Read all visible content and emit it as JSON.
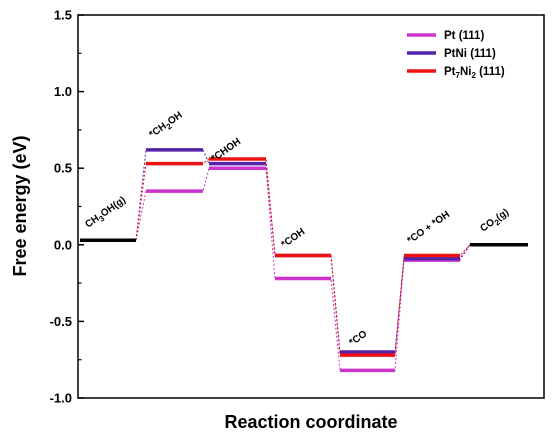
{
  "chart_data": {
    "type": "line",
    "title": "",
    "xlabel": "Reaction coordinate",
    "ylabel": "Free energy (eV)",
    "ylim": [
      -1.0,
      1.5
    ],
    "yticks": [
      "1.5",
      "1.0",
      "0.5",
      "0.0",
      "-0.5",
      "-1.0"
    ],
    "states": [
      {
        "label": "CH3OH(g)",
        "display": [
          "CH",
          "3",
          "OH(g)"
        ]
      },
      {
        "label": "*CH2OH",
        "display": [
          "*CH",
          "2",
          "OH"
        ]
      },
      {
        "label": "*CHOH",
        "display": [
          "*CHOH"
        ]
      },
      {
        "label": "*COH",
        "display": [
          "*COH"
        ]
      },
      {
        "label": "*CO",
        "display": [
          "*CO"
        ]
      },
      {
        "label": "*CO + *OH",
        "display": [
          "*CO + *OH"
        ]
      },
      {
        "label": "CO2(g)",
        "display": [
          "CO",
          "2",
          "(g)"
        ]
      }
    ],
    "series": [
      {
        "name": "Pt (111)",
        "legend": [
          "Pt (111)"
        ],
        "color": "#cc33cc",
        "values": [
          0.03,
          0.35,
          0.5,
          -0.22,
          -0.82,
          -0.1,
          0.0
        ]
      },
      {
        "name": "PtNi (111)",
        "legend": [
          "PtNi (111)"
        ],
        "color": "#5522aa",
        "values": [
          0.03,
          0.62,
          0.53,
          -0.07,
          -0.7,
          -0.09,
          0.0
        ]
      },
      {
        "name": "Pt7Ni2 (111)",
        "legend": [
          "Pt",
          "7",
          "Ni",
          "2",
          " (111)"
        ],
        "color": "#ee1111",
        "values": [
          0.03,
          0.53,
          0.56,
          -0.07,
          -0.72,
          -0.07,
          0.0
        ]
      }
    ],
    "legend_position": "top-right",
    "grid": false
  }
}
